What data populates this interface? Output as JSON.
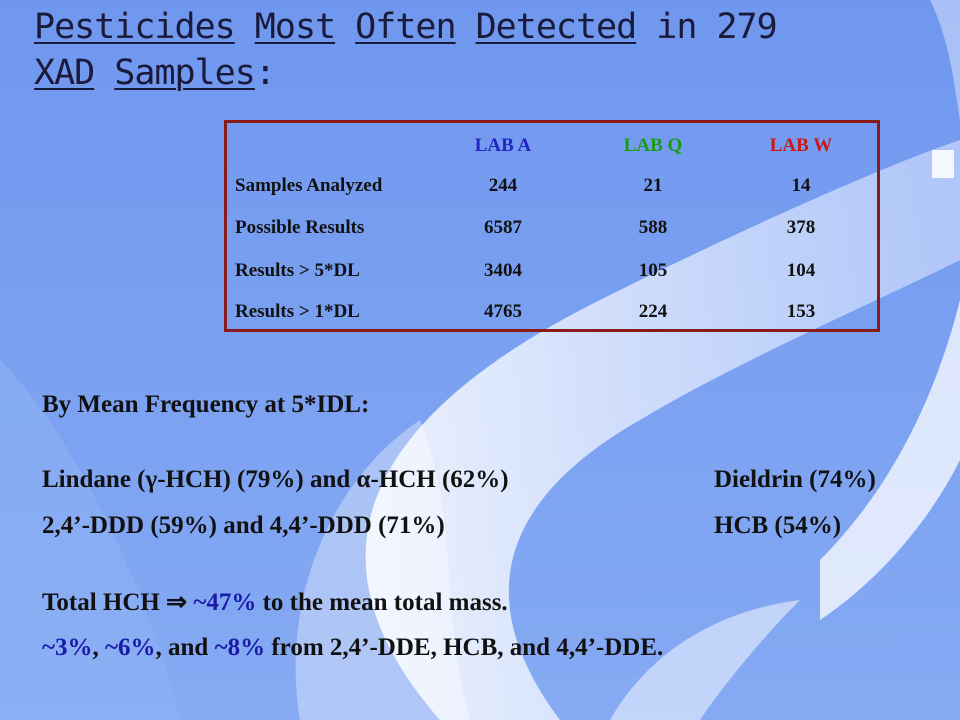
{
  "title": {
    "w1": "Pesticides",
    "w2": "Most",
    "w3": "Often",
    "w4": "Detected",
    "w5": "in 279",
    "w6": "XAD",
    "w7": "Samples",
    "w8": ":"
  },
  "table": {
    "headers": [
      "LAB A",
      "LAB Q",
      "LAB W"
    ],
    "header_colors": [
      "#2424c8",
      "#1a9a1a",
      "#c81818"
    ],
    "rows": [
      {
        "label": "Samples Analyzed",
        "values": [
          "244",
          "21",
          "14"
        ]
      },
      {
        "label": "Possible Results",
        "values": [
          "6587",
          "588",
          "378"
        ]
      },
      {
        "label": "Results > 5*DL",
        "values": [
          "3404",
          "105",
          "104"
        ]
      },
      {
        "label": "Results > 1*DL",
        "values": [
          "4765",
          "224",
          "153"
        ]
      }
    ],
    "border_color": "#8a1b1b"
  },
  "text": {
    "heading": "By Mean Frequency at 5*IDL:",
    "line1_left": "Lindane (γ-HCH) (79%) and α-HCH (62%)",
    "line1_right": "Dieldrin (74%)",
    "line2_left": "2,4’-DDD (59%) and 4,4’-DDD (71%)",
    "line2_right": "HCB (54%)",
    "line3_a": "Total HCH ",
    "line3_arrow": "⇒",
    "line3_b": " ~47%",
    "line3_c": " to the mean total mass.",
    "line4_a": "~3%",
    "line4_b": ", ",
    "line4_c": "~6%",
    "line4_d": ", and ",
    "line4_e": "~8%",
    "line4_f": " from 2,4’-DDE, HCB, and 4,4’-DDE."
  },
  "colors": {
    "background": "#7fa3f2",
    "highlight": "#1a1aa8"
  }
}
